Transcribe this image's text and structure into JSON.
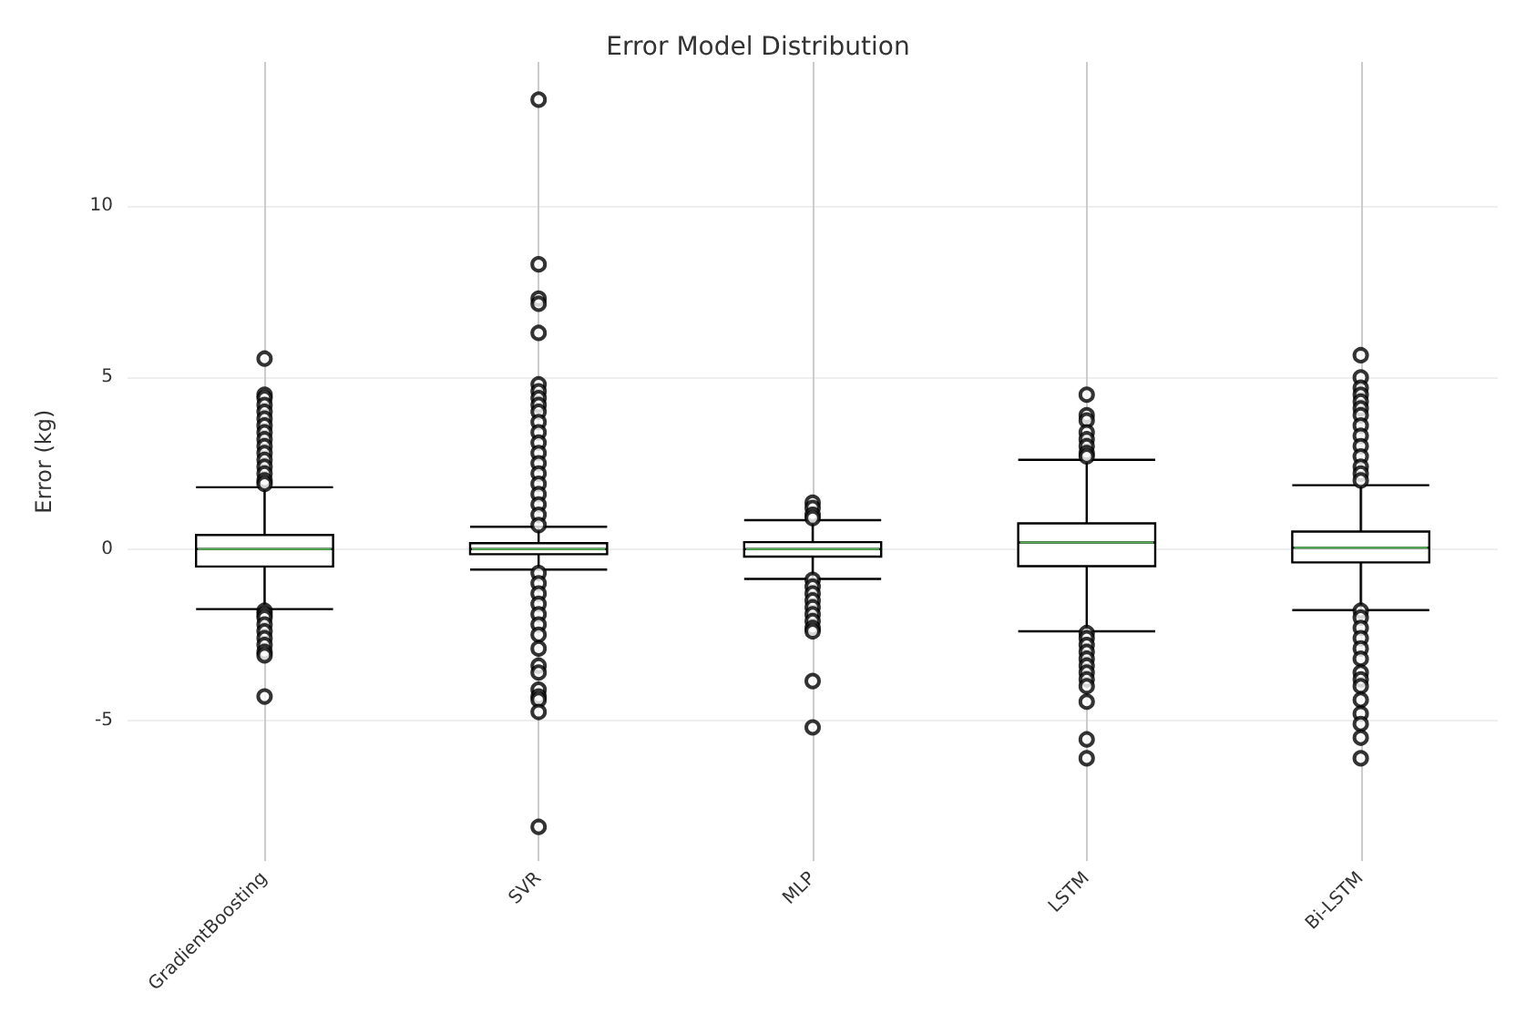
{
  "chart_data": {
    "type": "box",
    "title": "Error Model Distribution",
    "ylabel": "Error (kg)",
    "categories": [
      "GradientBoosting",
      "SVR",
      "MLP",
      "LSTM",
      "Bi-LSTM"
    ],
    "ylim": [
      -9.1,
      14.2
    ],
    "yticks": [
      -5,
      0,
      5,
      10
    ],
    "grid": true,
    "marker": "circle",
    "series": [
      {
        "color": "#000000",
        "boxes": [
          {
            "low": -1.75,
            "q1": -0.51,
            "median": 0,
            "q3": 0.41,
            "high": 1.8,
            "outliers": [
              5.55,
              4.5,
              4.4,
              4.2,
              4.0,
              3.8,
              3.6,
              3.4,
              3.2,
              3.0,
              2.8,
              2.6,
              2.4,
              2.2,
              2.0,
              1.9,
              -1.8,
              -1.9,
              -2.0,
              -2.2,
              -2.4,
              -2.6,
              -2.8,
              -3.0,
              -3.1,
              -4.3
            ]
          },
          {
            "low": -0.6,
            "q1": -0.15,
            "median": 0,
            "q3": 0.17,
            "high": 0.65,
            "outliers": [
              13.1,
              8.3,
              7.3,
              7.15,
              6.3,
              4.8,
              4.6,
              4.4,
              4.2,
              4.0,
              3.7,
              3.4,
              3.1,
              2.8,
              2.5,
              2.2,
              1.9,
              1.6,
              1.3,
              1.0,
              0.7,
              -0.7,
              -1.0,
              -1.3,
              -1.6,
              -1.9,
              -2.2,
              -2.5,
              -2.9,
              -3.4,
              -3.6,
              -4.1,
              -4.3,
              -4.4,
              -4.75,
              -8.1
            ]
          },
          {
            "low": -0.87,
            "q1": -0.22,
            "median": 0,
            "q3": 0.2,
            "high": 0.84,
            "outliers": [
              1.35,
              1.2,
              1.0,
              0.9,
              -0.9,
              -1.1,
              -1.3,
              -1.5,
              -1.7,
              -1.9,
              -2.1,
              -2.3,
              -2.4,
              -3.85,
              -5.2
            ]
          },
          {
            "low": -2.4,
            "q1": -0.5,
            "median": 0.19,
            "q3": 0.75,
            "high": 2.6,
            "outliers": [
              4.5,
              3.9,
              3.75,
              3.4,
              3.2,
              3.0,
              2.8,
              2.7,
              -2.45,
              -2.6,
              -2.8,
              -3.0,
              -3.2,
              -3.4,
              -3.6,
              -3.8,
              -4.0,
              -4.45,
              -5.55,
              -6.1
            ]
          },
          {
            "low": -1.78,
            "q1": -0.39,
            "median": 0.04,
            "q3": 0.51,
            "high": 1.86,
            "outliers": [
              5.65,
              5.0,
              4.7,
              4.5,
              4.3,
              4.1,
              3.9,
              3.6,
              3.3,
              3.0,
              2.7,
              2.4,
              2.2,
              2.0,
              -1.8,
              -2.0,
              -2.3,
              -2.6,
              -2.9,
              -3.2,
              -3.6,
              -3.8,
              -4.0,
              -4.4,
              -4.8,
              -5.1,
              -5.5,
              -6.1
            ]
          }
        ]
      }
    ]
  }
}
